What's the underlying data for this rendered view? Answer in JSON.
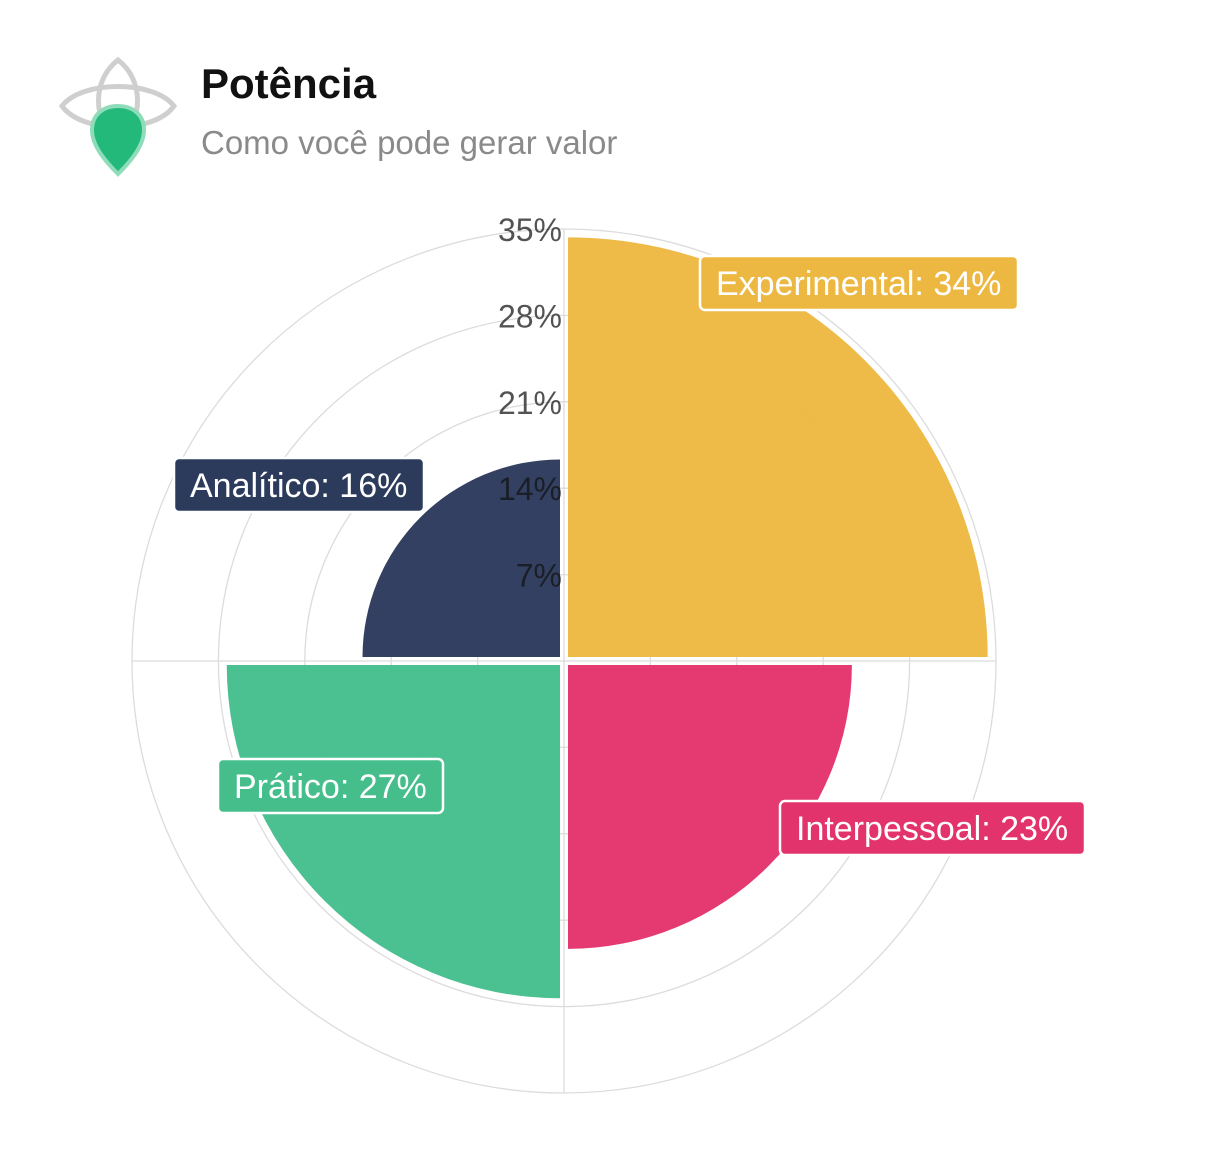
{
  "header": {
    "title": "Potência",
    "subtitle": "Como você pode gerar valor",
    "logo_icon": "eye-drop-icon"
  },
  "colors": {
    "experimental": "#EDB842",
    "interpessoal": "#E3336C",
    "pratico": "#45BE8C",
    "analitico": "#2C3A5C",
    "grid": "#dcdcdc",
    "logo_green": "#22B97A"
  },
  "chart_data": {
    "type": "polar-area",
    "title": "",
    "rmax": 35,
    "ticks": [
      "7%",
      "14%",
      "21%",
      "28%",
      "35%"
    ],
    "tick_values": [
      7,
      14,
      21,
      28,
      35
    ],
    "grid": true,
    "series": [
      {
        "name": "Experimental",
        "value": 34,
        "label": "Experimental: 34%",
        "color": "#EDB842",
        "quadrant": "top-right"
      },
      {
        "name": "Interpessoal",
        "value": 23,
        "label": "Interpessoal: 23%",
        "color": "#E3336C",
        "quadrant": "bottom-right"
      },
      {
        "name": "Prático",
        "value": 27,
        "label": "Prático: 27%",
        "color": "#45BE8C",
        "quadrant": "bottom-left"
      },
      {
        "name": "Analítico",
        "value": 16,
        "label": "Analítico: 16%",
        "color": "#2C3A5C",
        "quadrant": "top-left"
      }
    ]
  }
}
